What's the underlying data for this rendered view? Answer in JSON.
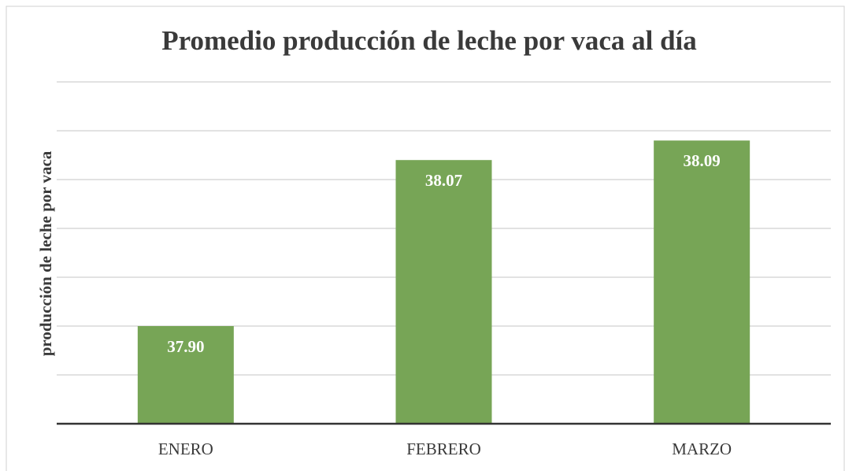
{
  "chart_data": {
    "type": "bar",
    "title": "Promedio producción de leche por vaca al día",
    "y_label": "producción de leche por vaca",
    "categories": [
      "ENERO",
      "FEBRERO",
      "MARZO"
    ],
    "values": [
      37.9,
      38.07,
      38.09
    ],
    "value_labels": [
      "37.90",
      "38.07",
      "38.09"
    ],
    "color": "#77a556",
    "ylim": [
      37.8,
      38.15
    ],
    "yticks": [
      37.8,
      37.85,
      37.9,
      37.95,
      38.0,
      38.05,
      38.1,
      38.15
    ],
    "grid": true
  }
}
